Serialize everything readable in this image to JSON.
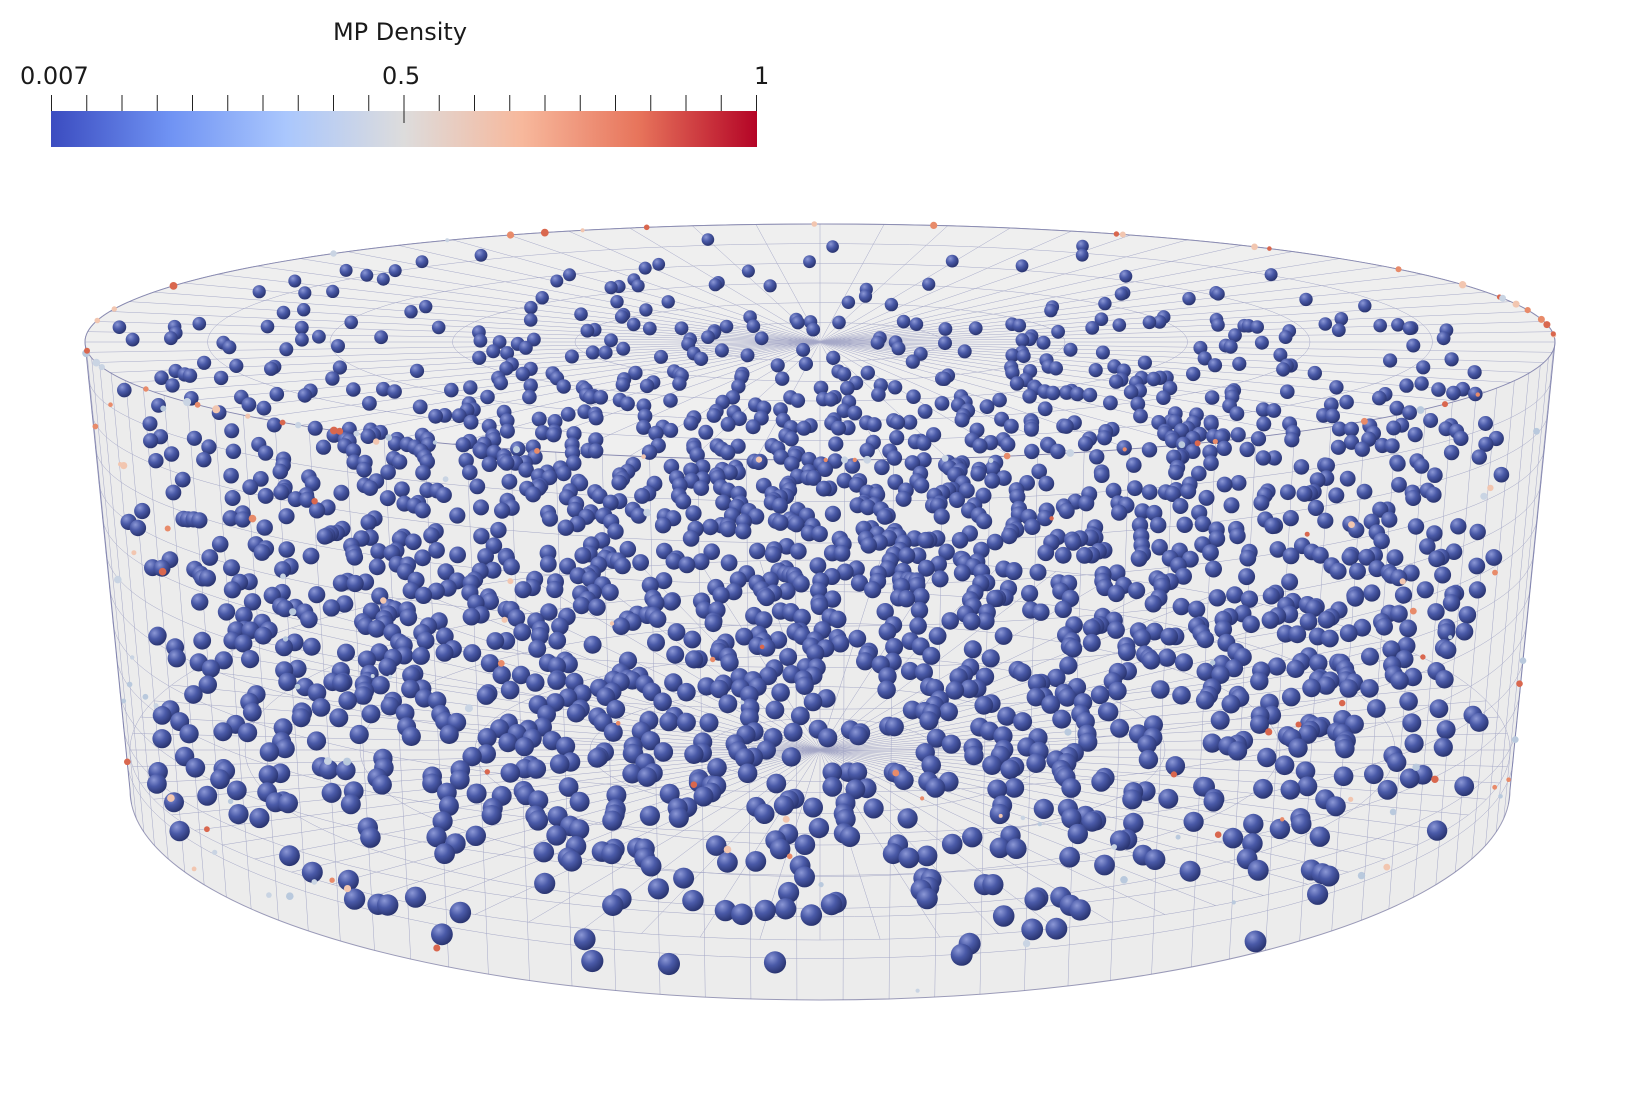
{
  "legend": {
    "title": "MP Density",
    "min_label": "0.007",
    "mid_label": "0.5",
    "max_label": "1",
    "colormap": [
      "#3b4cc0",
      "#6f92f3",
      "#aac7fd",
      "#dddcdc",
      "#f7b89c",
      "#e7745b",
      "#b40426"
    ],
    "ticks": 20
  },
  "scene": {
    "background": "#ffffff",
    "cylinder_fill": "#ececec",
    "mesh_color": "#6a6fa8",
    "particle_color": "#4a5aa8",
    "edge_particle_colors": [
      "#e88b6a",
      "#f2c6b0",
      "#b9c9dd",
      "#d9674e",
      "#c9d4e3"
    ],
    "particle_count": 2000
  }
}
